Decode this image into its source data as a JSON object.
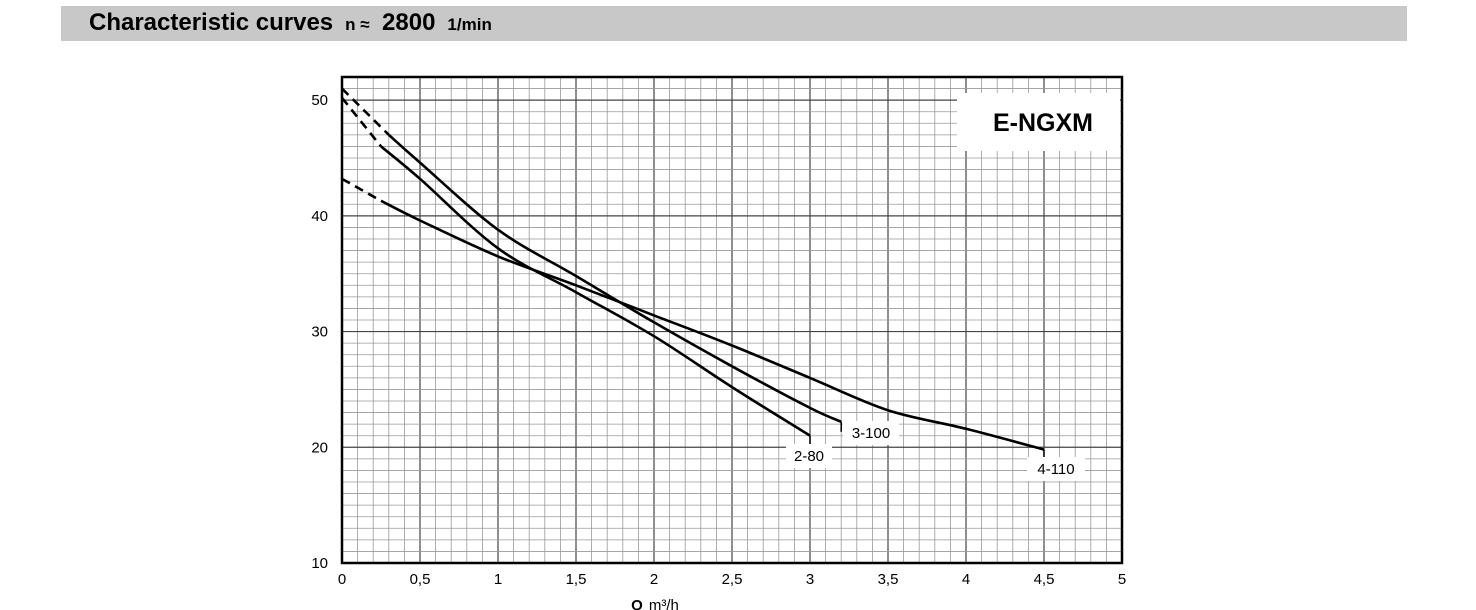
{
  "header": {
    "title": "Characteristic curves",
    "speed_symbol": "n ≈",
    "speed_value": "2800",
    "speed_unit": "1/min"
  },
  "chart_data": {
    "type": "line",
    "model_label": "E-NGXM",
    "xlabel_symbol": "Q",
    "xlabel_unit": "m³/h",
    "ylabel": "",
    "xlim": [
      0,
      5
    ],
    "ylim": [
      10,
      52
    ],
    "x_ticks": [
      "0",
      "0,5",
      "1",
      "1,5",
      "2",
      "2,5",
      "3",
      "3,5",
      "4",
      "4,5",
      "5"
    ],
    "y_ticks": [
      "10",
      "20",
      "30",
      "40",
      "50"
    ],
    "grid": true,
    "series": [
      {
        "name": "2-80",
        "extrapolated_points": [
          [
            0,
            50.2
          ],
          [
            0.25,
            46
          ]
        ],
        "points": [
          [
            0.25,
            46
          ],
          [
            0.5,
            43.2
          ],
          [
            1,
            37.2
          ],
          [
            1.5,
            33.4
          ],
          [
            2,
            29.6
          ],
          [
            2.5,
            25.2
          ],
          [
            3,
            21
          ]
        ]
      },
      {
        "name": "3-100",
        "extrapolated_points": [
          [
            0,
            51
          ],
          [
            0.3,
            47
          ]
        ],
        "points": [
          [
            0.3,
            47
          ],
          [
            0.5,
            44.6
          ],
          [
            1,
            38.8
          ],
          [
            1.5,
            34.8
          ],
          [
            2,
            30.8
          ],
          [
            2.5,
            27
          ],
          [
            3,
            23.4
          ],
          [
            3.2,
            22.2
          ]
        ]
      },
      {
        "name": "4-110",
        "extrapolated_points": [
          [
            0,
            43.2
          ],
          [
            0.25,
            41.3
          ]
        ],
        "points": [
          [
            0.25,
            41.3
          ],
          [
            0.5,
            39.6
          ],
          [
            1,
            36.5
          ],
          [
            1.5,
            34
          ],
          [
            2,
            31.4
          ],
          [
            2.5,
            28.8
          ],
          [
            3,
            26
          ],
          [
            3.5,
            23.2
          ],
          [
            4,
            21.6
          ],
          [
            4.5,
            19.8
          ]
        ]
      }
    ]
  }
}
